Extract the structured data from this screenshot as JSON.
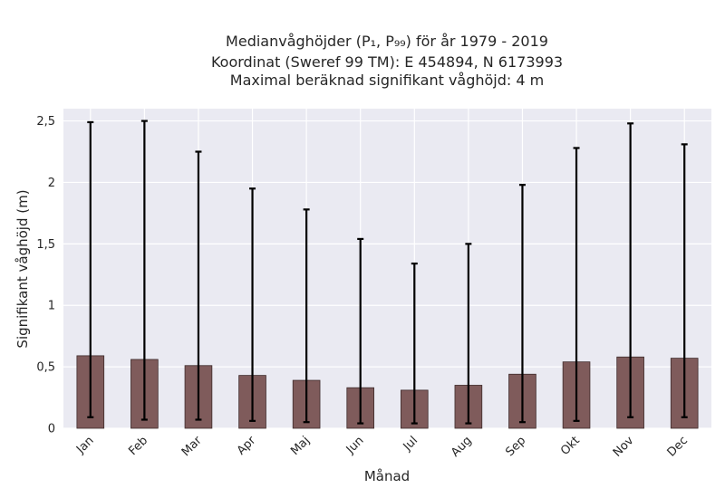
{
  "chart_data": {
    "type": "bar",
    "title_lines": [
      "Medianvåghöjder (P₁, P₉₉) för år 1979 - 2019",
      "Koordinat (Sweref 99 TM): E 454894, N 6173993",
      "Maximal beräknad signifikant våghöjd: 4 m"
    ],
    "xlabel": "Månad",
    "ylabel": "Signifikant våghöjd (m)",
    "categories": [
      "Jan",
      "Feb",
      "Mar",
      "Apr",
      "Maj",
      "Jun",
      "Jul",
      "Aug",
      "Sep",
      "Okt",
      "Nov",
      "Dec"
    ],
    "values": [
      0.59,
      0.56,
      0.51,
      0.43,
      0.39,
      0.33,
      0.31,
      0.35,
      0.44,
      0.54,
      0.58,
      0.57
    ],
    "p1": [
      0.09,
      0.07,
      0.07,
      0.06,
      0.05,
      0.04,
      0.04,
      0.04,
      0.05,
      0.06,
      0.09,
      0.09
    ],
    "p99": [
      2.49,
      2.5,
      2.25,
      1.95,
      1.78,
      1.54,
      1.34,
      1.5,
      1.98,
      2.28,
      2.48,
      2.31
    ],
    "ylim": [
      0,
      2.6
    ],
    "yticks": [
      0,
      0.5,
      1,
      1.5,
      2,
      2.5
    ],
    "ytick_labels": [
      "0",
      "0,5",
      "1",
      "1,5",
      "2",
      "2,5"
    ],
    "grid": true,
    "colors": {
      "bar_fill": "#7f5b5b",
      "bar_edge": "#3d2a2a",
      "plot_bg": "#eaeaf2",
      "grid": "#ffffff",
      "errorbar": "#000000"
    }
  }
}
